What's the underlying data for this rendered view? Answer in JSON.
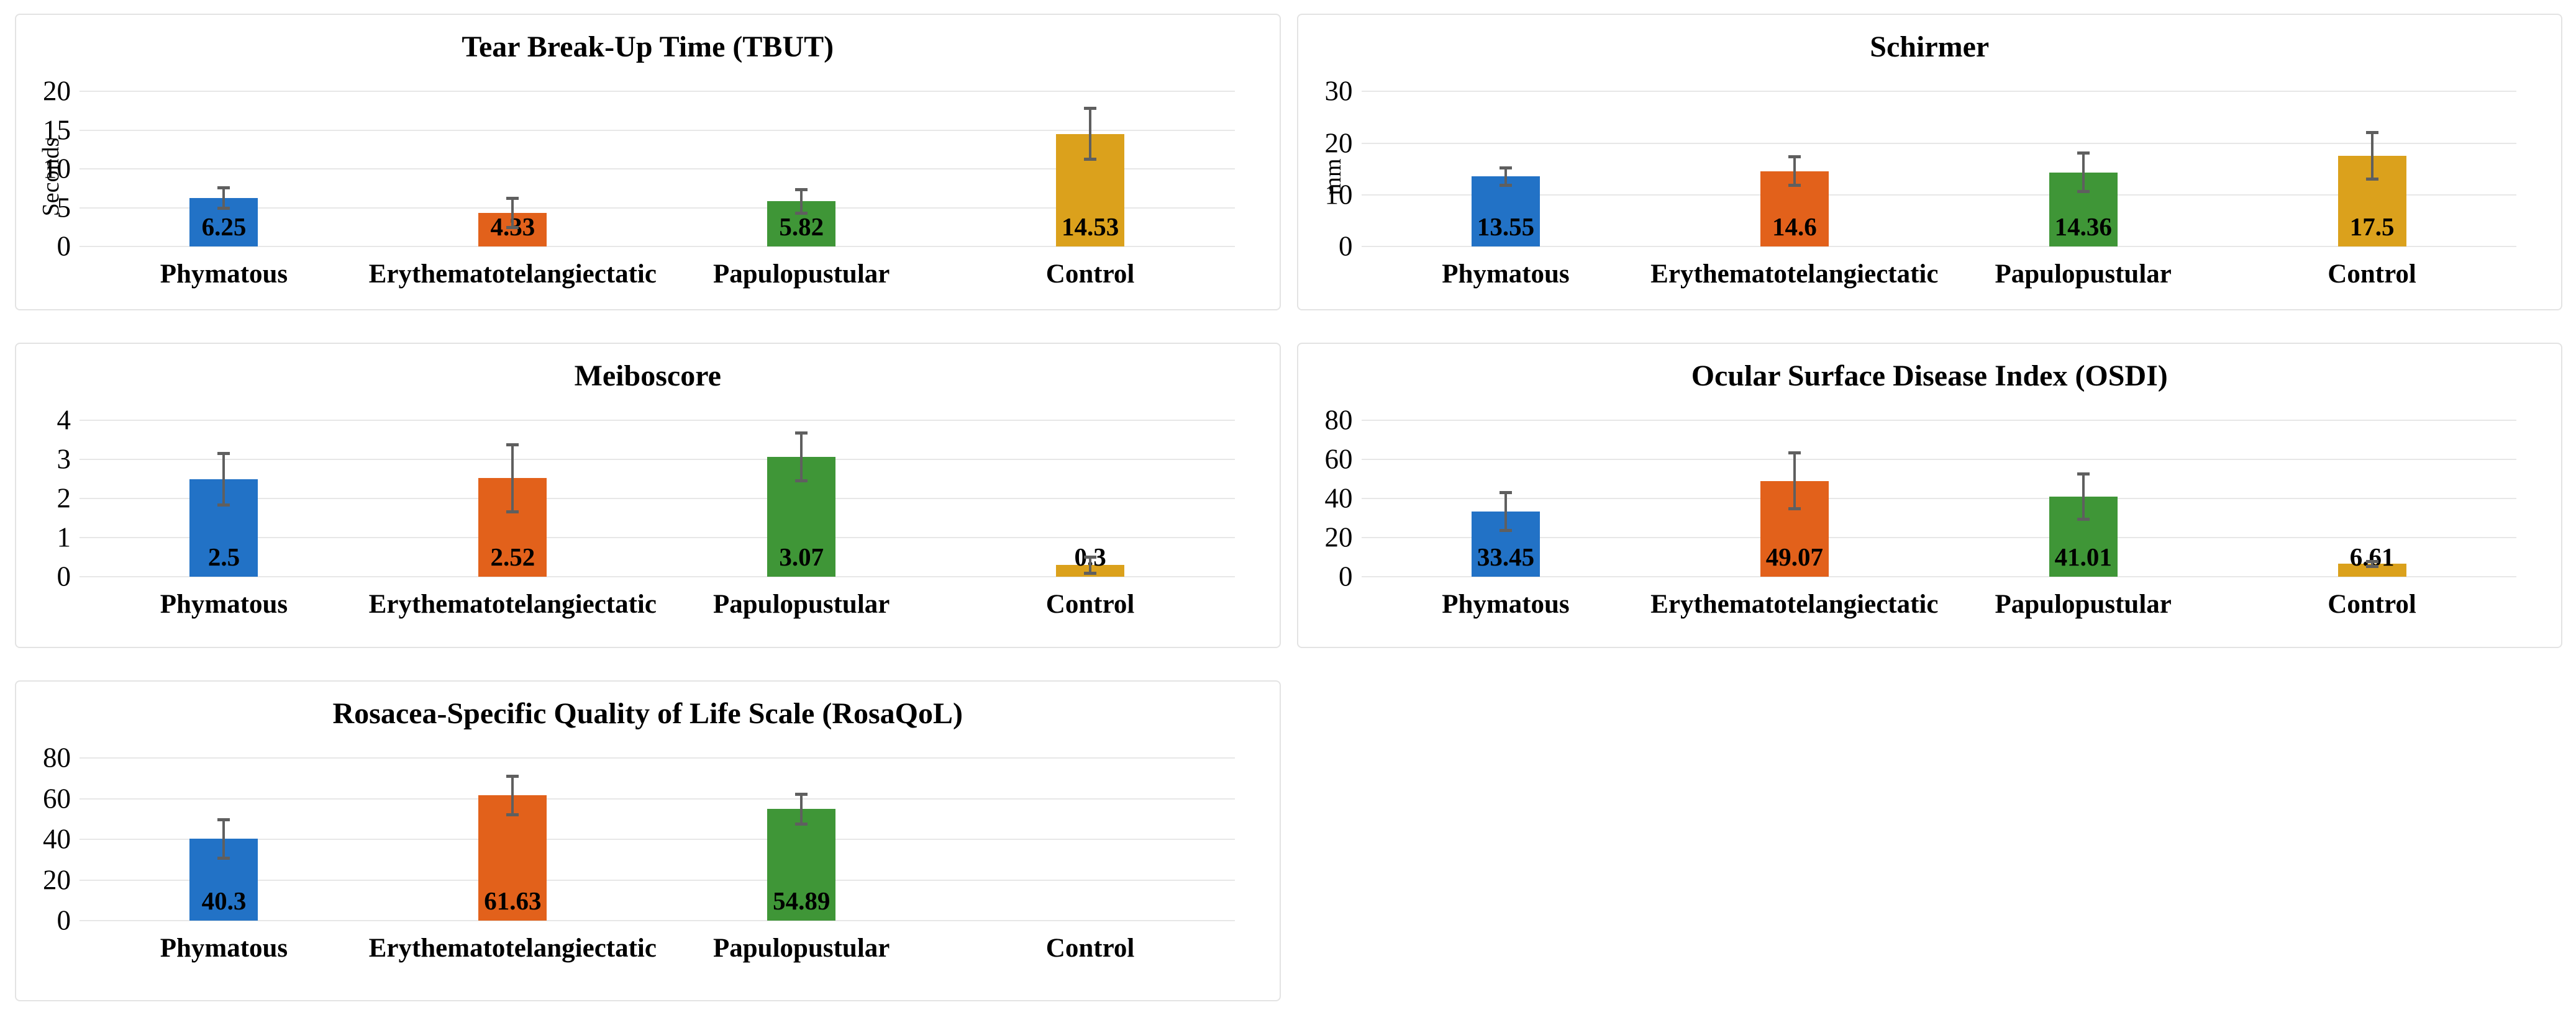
{
  "figure": {
    "description": "Panel of five bar charts comparing ocular-surface measures across rosacea subtypes and control",
    "background_color": "#ffffff",
    "panel_border_color": "#e3e3e3",
    "grid_color": "#e7e7e7",
    "error_bar_color": "#5f5f5f",
    "text_color": "#000000"
  },
  "categories": [
    "Phymatous",
    "Erythematotelangiectatic",
    "Papulopustular",
    "Control"
  ],
  "series_colors": [
    "#2272c6",
    "#e2611b",
    "#3f9637",
    "#dba11c"
  ],
  "chart_data": [
    {
      "id": "tbut",
      "type": "bar",
      "title": "Tear Break-Up Time (TBUT)",
      "xlabel": "",
      "ylabel": "Seconds",
      "categories": [
        "Phymatous",
        "Erythematotelangiectatic",
        "Papulopustular",
        "Control"
      ],
      "values": [
        6.25,
        4.33,
        5.82,
        14.53
      ],
      "labels": [
        "6.25",
        "4.33",
        "5.82",
        "14.53"
      ],
      "errors": [
        1.5,
        2.1,
        1.7,
        3.5
      ],
      "yticks": [
        0,
        5,
        10,
        15,
        20
      ],
      "ylim": [
        0,
        20
      ],
      "grid": "on",
      "legend": "none",
      "grid_pos": {
        "row": 1,
        "col": 1
      }
    },
    {
      "id": "schirmer",
      "type": "bar",
      "title": "Schirmer",
      "xlabel": "",
      "ylabel": "mm",
      "categories": [
        "Phymatous",
        "Erythematotelangiectatic",
        "Papulopustular",
        "Control"
      ],
      "values": [
        13.55,
        14.6,
        14.36,
        17.5
      ],
      "labels": [
        "13.55",
        "14.6",
        "14.36",
        "17.5"
      ],
      "errors": [
        2.0,
        3.1,
        4.0,
        4.8
      ],
      "yticks": [
        0,
        10,
        20,
        30
      ],
      "ylim": [
        0,
        30
      ],
      "grid": "on",
      "legend": "none",
      "grid_pos": {
        "row": 1,
        "col": 2
      }
    },
    {
      "id": "meiboscore",
      "type": "bar",
      "title": "Meiboscore",
      "xlabel": "",
      "ylabel": null,
      "categories": [
        "Phymatous",
        "Erythematotelangiectatic",
        "Papulopustular",
        "Control"
      ],
      "values": [
        2.5,
        2.52,
        3.07,
        0.3
      ],
      "labels": [
        "2.5",
        "2.52",
        "3.07",
        "0.3"
      ],
      "errors": [
        0.7,
        0.9,
        0.65,
        0.25
      ],
      "yticks": [
        0,
        1,
        2,
        3,
        4
      ],
      "ylim": [
        0,
        4
      ],
      "grid": "on",
      "legend": "none",
      "grid_pos": {
        "row": 2,
        "col": 1
      }
    },
    {
      "id": "osdi",
      "type": "bar",
      "title": "Ocular Surface Disease Index (OSDI)",
      "xlabel": "",
      "ylabel": null,
      "categories": [
        "Phymatous",
        "Erythematotelangiectatic",
        "Papulopustular",
        "Control"
      ],
      "values": [
        33.45,
        49.07,
        41.01,
        6.61
      ],
      "labels": [
        "33.45",
        "49.07",
        "41.01",
        "6.61"
      ],
      "errors": [
        10.5,
        15.0,
        12.5,
        2.0
      ],
      "yticks": [
        0,
        20,
        40,
        60,
        80
      ],
      "ylim": [
        0,
        80
      ],
      "grid": "on",
      "legend": "none",
      "grid_pos": {
        "row": 2,
        "col": 2
      }
    },
    {
      "id": "rosaqol",
      "type": "bar",
      "title": "Rosacea-Specific Quality of Life Scale (RosaQoL)",
      "xlabel": "",
      "ylabel": null,
      "categories": [
        "Phymatous",
        "Erythematotelangiectatic",
        "Papulopustular",
        "Control"
      ],
      "values": [
        40.3,
        61.63,
        54.89,
        null
      ],
      "labels": [
        "40.3",
        "61.63",
        "54.89",
        null
      ],
      "errors": [
        10.2,
        10.3,
        8.0,
        null
      ],
      "yticks": [
        0,
        20,
        40,
        60,
        80
      ],
      "ylim": [
        0,
        80
      ],
      "grid": "on",
      "legend": "none",
      "grid_pos": {
        "row": 3,
        "col": 1
      }
    }
  ]
}
